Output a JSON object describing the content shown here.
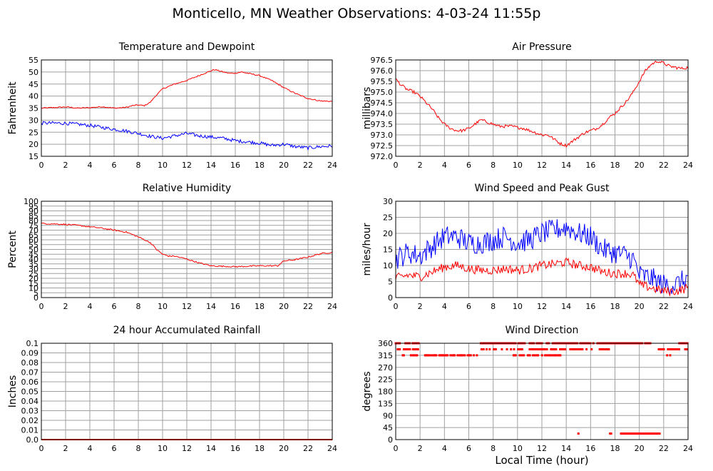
{
  "page": {
    "title": "Monticello, MN Weather Observations: 4-03-24 11:55p",
    "x_axis_label": "Local Time (hour)"
  },
  "chart_data": [
    {
      "id": "temp",
      "type": "line",
      "title": "Temperature and Dewpoint",
      "xlabel": "",
      "ylabel": "Fahrenheit",
      "xlim": [
        0,
        24
      ],
      "ylim": [
        15,
        55
      ],
      "xticks": [
        0,
        2,
        4,
        6,
        8,
        10,
        12,
        14,
        16,
        18,
        20,
        22,
        24
      ],
      "yticks": [
        15,
        20,
        25,
        30,
        35,
        40,
        45,
        50,
        55
      ],
      "ytick_labels": [
        "15",
        "20",
        "25",
        "30",
        "35",
        "40",
        "45",
        "50",
        "55"
      ],
      "grid": true,
      "series": [
        {
          "color": "#ff0000",
          "noise": 0.25,
          "x": [
            0,
            1,
            2,
            3,
            4,
            5,
            6,
            7,
            7.5,
            8,
            8.5,
            9,
            9.5,
            10,
            10.5,
            11,
            12,
            13,
            14,
            14.3,
            15,
            15.5,
            16,
            16.5,
            17,
            18,
            19,
            20,
            21,
            22,
            23,
            24
          ],
          "y": [
            35,
            35.2,
            35.5,
            35,
            35.2,
            35.6,
            35,
            35.3,
            36,
            36.3,
            36,
            37.5,
            40.5,
            43,
            44,
            45,
            46.5,
            48.5,
            50.5,
            51,
            50,
            49.5,
            49.5,
            50,
            49.5,
            48.5,
            46.5,
            43.5,
            41,
            39,
            38,
            37.8
          ]
        },
        {
          "color": "#0000ff",
          "noise": 0.7,
          "x": [
            0,
            1,
            2,
            3,
            4,
            5,
            6,
            7,
            8,
            9,
            10,
            11,
            12,
            13,
            14,
            15,
            16,
            17,
            18,
            19,
            20,
            21,
            22,
            23,
            24
          ],
          "y": [
            28.8,
            28.8,
            28.7,
            28.3,
            27.8,
            27,
            26.2,
            25.5,
            24.5,
            23.3,
            22.5,
            23.5,
            24.5,
            23.5,
            23,
            22.5,
            21.5,
            21,
            20.5,
            19.5,
            20,
            19,
            18.5,
            19,
            19.3
          ]
        }
      ]
    },
    {
      "id": "pressure",
      "type": "line",
      "title": "Air Pressure",
      "xlabel": "",
      "ylabel": "millibars",
      "xlim": [
        0,
        24
      ],
      "ylim": [
        972.0,
        976.5
      ],
      "xticks": [
        0,
        2,
        4,
        6,
        8,
        10,
        12,
        14,
        16,
        18,
        20,
        22,
        24
      ],
      "yticks": [
        972.0,
        972.5,
        973.0,
        973.5,
        974.0,
        974.5,
        975.0,
        975.5,
        976.0,
        976.5
      ],
      "ytick_labels": [
        "972.0",
        "972.5",
        "973.0",
        "973.5",
        "974.0",
        "974.5",
        "975.0",
        "975.5",
        "976.0",
        "976.5"
      ],
      "grid": true,
      "series": [
        {
          "color": "#ff0000",
          "noise": 0.07,
          "x": [
            0,
            0.5,
            1,
            1.5,
            2,
            2.5,
            3,
            3.5,
            4,
            4.5,
            5,
            5.5,
            6,
            6.5,
            7,
            7.5,
            8,
            8.5,
            9,
            9.5,
            10,
            10.5,
            11,
            11.5,
            12,
            12.5,
            13,
            13.5,
            14,
            14.5,
            15,
            15.5,
            16,
            16.5,
            17,
            17.5,
            18,
            18.5,
            19,
            19.5,
            20,
            20.5,
            21,
            21.5,
            22,
            22.5,
            23,
            23.5,
            24
          ],
          "y": [
            975.6,
            975.3,
            975.1,
            975.0,
            974.8,
            974.5,
            974.2,
            973.8,
            973.5,
            973.3,
            973.2,
            973.2,
            973.3,
            973.5,
            973.7,
            973.6,
            973.5,
            973.4,
            973.4,
            973.4,
            973.35,
            973.3,
            973.2,
            973.1,
            973.0,
            973.0,
            972.8,
            972.6,
            972.5,
            972.7,
            972.9,
            973.1,
            973.2,
            973.3,
            973.5,
            973.8,
            974.0,
            974.3,
            974.6,
            975.0,
            975.5,
            976.0,
            976.3,
            976.45,
            976.35,
            976.2,
            976.15,
            976.1,
            976.15
          ]
        }
      ]
    },
    {
      "id": "humidity",
      "type": "line",
      "title": "Relative Humidity",
      "xlabel": "",
      "ylabel": "Percent",
      "xlim": [
        0,
        24
      ],
      "ylim": [
        0,
        100
      ],
      "xticks": [
        0,
        2,
        4,
        6,
        8,
        10,
        12,
        14,
        16,
        18,
        20,
        22,
        24
      ],
      "yticks": [
        0,
        5,
        10,
        15,
        20,
        25,
        30,
        35,
        40,
        45,
        50,
        55,
        60,
        65,
        70,
        75,
        80,
        85,
        90,
        95,
        100
      ],
      "ytick_labels": [
        "0",
        "5",
        "10",
        "15",
        "20",
        "25",
        "30",
        "35",
        "40",
        "45",
        "50",
        "55",
        "60",
        "65",
        "70",
        "75",
        "80",
        "85",
        "90",
        "95",
        "100"
      ],
      "grid": true,
      "series": [
        {
          "color": "#ff0000",
          "noise": 0.7,
          "x": [
            0,
            1,
            2,
            3,
            4,
            5,
            6,
            7,
            8,
            8.5,
            9,
            9.5,
            10,
            10.5,
            11,
            12,
            13,
            14,
            15,
            16,
            17,
            18,
            19,
            19.5,
            20,
            21,
            22,
            23,
            24
          ],
          "y": [
            77,
            76.5,
            76,
            75,
            73.5,
            72,
            70,
            68,
            63,
            60,
            57,
            50,
            45,
            43,
            43,
            40,
            36,
            33,
            32.5,
            32,
            32.5,
            33,
            33,
            33,
            38,
            39.5,
            42,
            45.5,
            47
          ]
        }
      ]
    },
    {
      "id": "wind",
      "type": "line",
      "title": "Wind Speed and Peak Gust",
      "xlabel": "",
      "ylabel": "miles/hour",
      "xlim": [
        0,
        24
      ],
      "ylim": [
        0,
        30
      ],
      "xticks": [
        0,
        2,
        4,
        6,
        8,
        10,
        12,
        14,
        16,
        18,
        20,
        22,
        24
      ],
      "yticks": [
        0,
        5,
        10,
        15,
        20,
        25,
        30
      ],
      "ytick_labels": [
        "0",
        "5",
        "10",
        "15",
        "20",
        "25",
        "30"
      ],
      "grid": true,
      "series": [
        {
          "color": "#0000ff",
          "noise": 3.5,
          "x": [
            0,
            1,
            2,
            3,
            4,
            5,
            6,
            7,
            8,
            9,
            10,
            11,
            12,
            13,
            14,
            15,
            16,
            17,
            18,
            19,
            19.5,
            20,
            21,
            22,
            23,
            24
          ],
          "y": [
            12,
            14,
            13,
            16,
            19,
            19,
            17,
            17,
            18,
            19,
            17,
            18,
            20,
            21,
            22,
            20,
            19,
            15,
            14,
            13,
            12,
            7,
            6,
            4,
            4,
            6
          ]
        },
        {
          "color": "#ff0000",
          "noise": 1.4,
          "x": [
            0,
            1,
            2,
            3,
            4,
            5,
            6,
            7,
            8,
            9,
            10,
            11,
            12,
            13,
            14,
            15,
            16,
            17,
            18,
            19,
            19.5,
            20,
            21,
            22,
            23,
            24
          ],
          "y": [
            6,
            7,
            6.5,
            8,
            9.5,
            10,
            9,
            8.5,
            8.5,
            9,
            8.5,
            9,
            10,
            10.5,
            11,
            10,
            9.5,
            8,
            7.5,
            7.5,
            7,
            4,
            3,
            2,
            2,
            3
          ]
        }
      ]
    },
    {
      "id": "rain",
      "type": "line",
      "title": "24 hour Accumulated Rainfall",
      "xlabel": "",
      "ylabel": "Inches",
      "xlim": [
        0,
        24
      ],
      "ylim": [
        0,
        0.1
      ],
      "xticks": [
        0,
        2,
        4,
        6,
        8,
        10,
        12,
        14,
        16,
        18,
        20,
        22,
        24
      ],
      "yticks": [
        0,
        0.01,
        0.02,
        0.03,
        0.04,
        0.05,
        0.06,
        0.07,
        0.08,
        0.09,
        0.1
      ],
      "ytick_labels": [
        "0.0",
        "0.01",
        "0.02",
        "0.03",
        "0.04",
        "0.05",
        "0.06",
        "0.07",
        "0.08",
        "0.09",
        "0.1"
      ],
      "grid": true,
      "series": [
        {
          "color": "#ff0000",
          "noise": 0,
          "x": [
            0,
            24
          ],
          "y": [
            0,
            0
          ]
        }
      ]
    },
    {
      "id": "winddir",
      "type": "scatter",
      "title": "Wind Direction",
      "xlabel": "Local Time (hour)",
      "ylabel": "degrees",
      "xlim": [
        0,
        24
      ],
      "ylim": [
        0,
        360
      ],
      "xticks": [
        0,
        2,
        4,
        6,
        8,
        10,
        12,
        14,
        16,
        18,
        20,
        22,
        24
      ],
      "yticks": [
        0,
        45,
        90,
        135,
        180,
        225,
        270,
        315,
        360
      ],
      "ytick_labels": [
        "0",
        "45",
        "90",
        "135",
        "180",
        "225",
        "270",
        "315",
        "360"
      ],
      "grid": true,
      "point_color": "#ff0000",
      "bands": [
        {
          "y": 360,
          "ranges": [
            [
              0,
              0.4
            ],
            [
              0.8,
              1.9
            ],
            [
              7.0,
              10.6
            ],
            [
              11.0,
              12.0
            ],
            [
              12.4,
              21.0
            ],
            [
              23.2,
              24
            ]
          ],
          "density": 0.8
        },
        {
          "y": 337.5,
          "ranges": [
            [
              0,
              1.9
            ],
            [
              6.8,
              10.6
            ],
            [
              11.0,
              17.5
            ],
            [
              21.6,
              24
            ]
          ],
          "density": 0.45
        },
        {
          "y": 315,
          "ranges": [
            [
              0.5,
              6.8
            ],
            [
              9.6,
              13.6
            ],
            [
              22.2,
              22.6
            ]
          ],
          "density": 0.6
        },
        {
          "y": 22.5,
          "ranges": [
            [
              15.0,
              15.1
            ],
            [
              17.6,
              17.7
            ],
            [
              18.5,
              21.7
            ]
          ],
          "density": 0.9
        }
      ]
    }
  ]
}
